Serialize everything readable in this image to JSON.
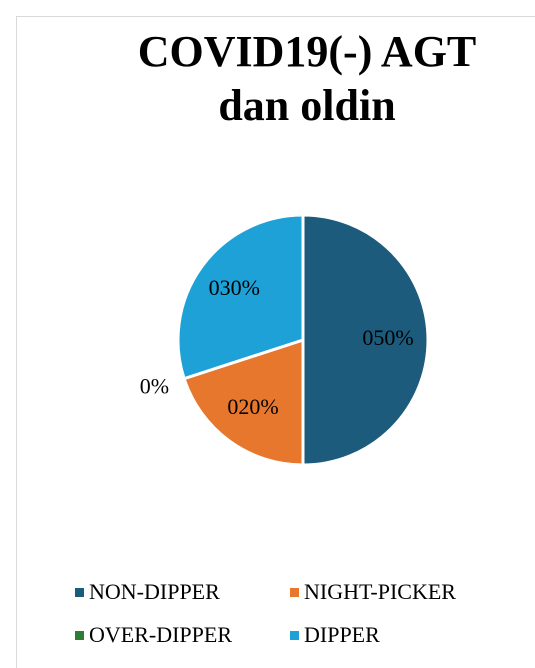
{
  "chart_data": {
    "type": "pie",
    "title": [
      "COVID19(-) AGT",
      "dan oldin"
    ],
    "categories": [
      "NON-DIPPER",
      "NIGHT-PICKER",
      "OVER-DIPPER",
      "DIPPER"
    ],
    "values": [
      50,
      20,
      0,
      30
    ],
    "data_labels": [
      "050%",
      "020%",
      "0%",
      "030%"
    ],
    "colors": [
      "#1c5b7c",
      "#e8772e",
      "#2e7d32",
      "#1ea1d6"
    ],
    "legend_position": "bottom"
  }
}
